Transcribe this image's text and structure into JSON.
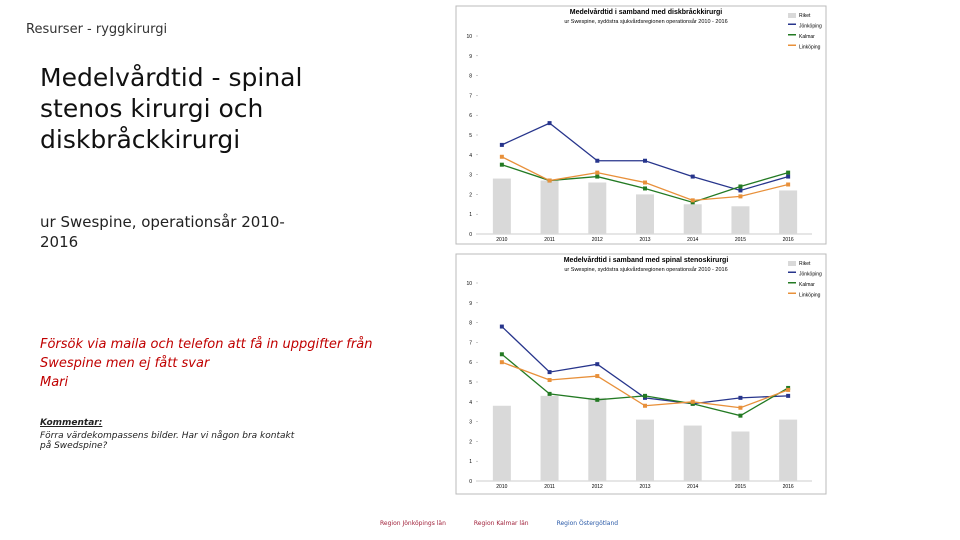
{
  "header": {
    "section": "Resurser - ryggkirurgi",
    "title": "Medelvårdtid - spinal stenos kirurgi och diskbråckkirurgi",
    "subtitle": "ur Swespine, operationsår 2010-2016"
  },
  "note": {
    "lines": [
      "Försök via maila och telefon att få in uppgifter från Swespine men ej fått svar",
      "Mari"
    ]
  },
  "comment": {
    "label": "Kommentar:",
    "text": "Förra värdekompassens bilder. Har vi någon bra kontakt på Swedspine?"
  },
  "logos": [
    "Region Jönköpings län",
    "Region Kalmar län",
    "Region Östergötland"
  ],
  "chart_data": [
    {
      "type": "bar-line",
      "title": "Medelvårdtid i samband med diskbråckkirurgi",
      "subtitle": "ur Swespine, sydöstra sjukvårdsregionen operationsår 2010 - 2016",
      "categories": [
        "2010",
        "2011",
        "2012",
        "2013",
        "2014",
        "2015",
        "2016"
      ],
      "ylim": [
        0,
        10
      ],
      "yticks": [
        0,
        1,
        2,
        3,
        4,
        5,
        6,
        7,
        8,
        9,
        10
      ],
      "series": [
        {
          "name": "Riket",
          "mark": "bar",
          "color": "#d9d9d9",
          "values": [
            2.8,
            2.7,
            2.6,
            2.0,
            1.5,
            1.4,
            2.2
          ]
        },
        {
          "name": "Jönköping",
          "mark": "line",
          "color": "#27358c",
          "values": [
            4.5,
            5.6,
            3.7,
            3.7,
            2.9,
            2.2,
            2.9
          ]
        },
        {
          "name": "Kalmar",
          "mark": "line",
          "color": "#237a23",
          "values": [
            3.5,
            2.7,
            2.9,
            2.3,
            1.6,
            2.4,
            3.1
          ]
        },
        {
          "name": "Linköping",
          "mark": "line",
          "color": "#e8903a",
          "values": [
            3.9,
            2.7,
            3.1,
            2.6,
            1.7,
            1.9,
            2.5
          ]
        }
      ]
    },
    {
      "type": "bar-line",
      "title": "Medelvårdtid i samband med spinal stenoskirurgi",
      "subtitle": "ur Swespine, sydöstra sjukvårdsregionen operationsår 2010 - 2016",
      "categories": [
        "2010",
        "2011",
        "2012",
        "2013",
        "2014",
        "2015",
        "2016"
      ],
      "ylim": [
        0,
        10
      ],
      "yticks": [
        0,
        1,
        2,
        3,
        4,
        5,
        6,
        7,
        8,
        9,
        10
      ],
      "series": [
        {
          "name": "Riket",
          "mark": "bar",
          "color": "#d9d9d9",
          "values": [
            3.8,
            4.3,
            4.2,
            3.1,
            2.8,
            2.5,
            3.1
          ]
        },
        {
          "name": "Jönköping",
          "mark": "line",
          "color": "#27358c",
          "values": [
            7.8,
            5.5,
            5.9,
            4.2,
            3.9,
            4.2,
            4.3
          ]
        },
        {
          "name": "Kalmar",
          "mark": "line",
          "color": "#237a23",
          "values": [
            6.4,
            4.4,
            4.1,
            4.3,
            3.9,
            3.3,
            4.7
          ]
        },
        {
          "name": "Linköping",
          "mark": "line",
          "color": "#e8903a",
          "values": [
            6.0,
            5.1,
            5.3,
            3.8,
            4.0,
            3.7,
            4.6
          ]
        }
      ]
    }
  ]
}
